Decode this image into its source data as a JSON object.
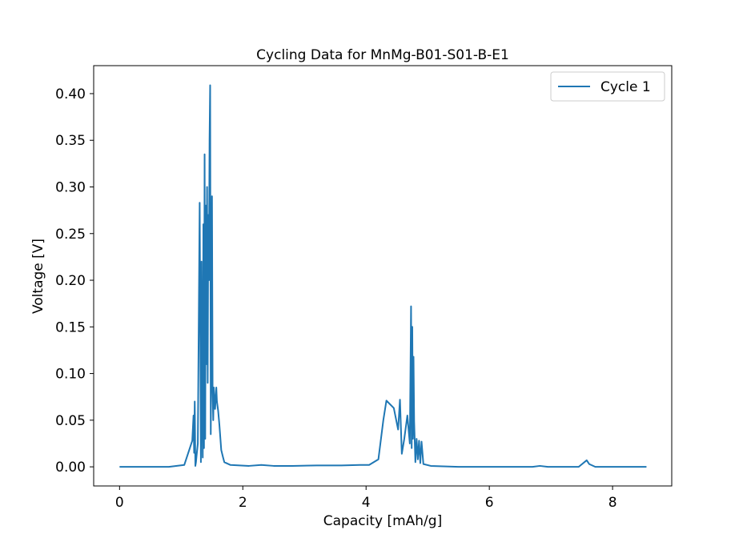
{
  "chart_data": {
    "type": "line",
    "title": "Cycling Data for MnMg-B01-S01-B-E1",
    "xlabel": "Capacity [mAh/g]",
    "ylabel": "Voltage [V]",
    "xlim": [
      -0.42,
      8.96
    ],
    "ylim": [
      -0.0205,
      0.43
    ],
    "xticks": [
      0,
      2,
      4,
      6,
      8
    ],
    "xtick_labels": [
      "0",
      "2",
      "4",
      "6",
      "8"
    ],
    "yticks": [
      0.0,
      0.05,
      0.1,
      0.15,
      0.2,
      0.25,
      0.3,
      0.35,
      0.4
    ],
    "ytick_labels": [
      "0.00",
      "0.05",
      "0.10",
      "0.15",
      "0.20",
      "0.25",
      "0.30",
      "0.35",
      "0.40"
    ],
    "grid": false,
    "legend": {
      "position": "top-right",
      "entries": [
        "Cycle 1"
      ]
    },
    "series": [
      {
        "name": "Cycle 1",
        "color": "#1f77b4",
        "x": [
          0.0,
          0.4,
          0.8,
          1.05,
          1.18,
          1.2,
          1.21,
          1.22,
          1.23,
          1.24,
          1.25,
          1.27,
          1.3,
          1.32,
          1.33,
          1.34,
          1.35,
          1.36,
          1.37,
          1.38,
          1.39,
          1.4,
          1.41,
          1.42,
          1.43,
          1.44,
          1.45,
          1.46,
          1.47,
          1.48,
          1.49,
          1.5,
          1.51,
          1.52,
          1.53,
          1.55,
          1.57,
          1.58,
          1.6,
          1.62,
          1.65,
          1.68,
          1.7,
          1.8,
          2.1,
          2.3,
          2.5,
          2.8,
          3.2,
          3.6,
          3.9,
          4.05,
          4.2,
          4.28,
          4.33,
          4.45,
          4.52,
          4.55,
          4.58,
          4.62,
          4.67,
          4.71,
          4.73,
          4.74,
          4.75,
          4.76,
          4.77,
          4.78,
          4.8,
          4.82,
          4.84,
          4.86,
          4.88,
          4.9,
          4.93,
          5.05,
          5.5,
          6.0,
          6.7,
          6.82,
          6.95,
          7.2,
          7.45,
          7.58,
          7.62,
          7.72,
          8.0,
          8.3,
          8.55
        ],
        "y": [
          0.0,
          0.0,
          0.0,
          0.002,
          0.028,
          0.055,
          0.015,
          0.07,
          0.001,
          0.005,
          0.012,
          0.025,
          0.283,
          0.005,
          0.22,
          0.08,
          0.01,
          0.26,
          0.02,
          0.335,
          0.03,
          0.28,
          0.11,
          0.3,
          0.09,
          0.27,
          0.2,
          0.35,
          0.409,
          0.035,
          0.15,
          0.29,
          0.08,
          0.05,
          0.085,
          0.062,
          0.085,
          0.07,
          0.06,
          0.045,
          0.018,
          0.01,
          0.005,
          0.002,
          0.001,
          0.002,
          0.001,
          0.001,
          0.0015,
          0.0015,
          0.002,
          0.002,
          0.008,
          0.05,
          0.071,
          0.063,
          0.04,
          0.072,
          0.014,
          0.03,
          0.055,
          0.025,
          0.172,
          0.02,
          0.15,
          0.03,
          0.118,
          0.049,
          0.005,
          0.03,
          0.008,
          0.028,
          0.004,
          0.027,
          0.003,
          0.001,
          0.0,
          0.0,
          0.0,
          0.001,
          0.0,
          0.0,
          0.0,
          0.007,
          0.003,
          0.0,
          0.0,
          0.0,
          0.0
        ]
      }
    ]
  }
}
